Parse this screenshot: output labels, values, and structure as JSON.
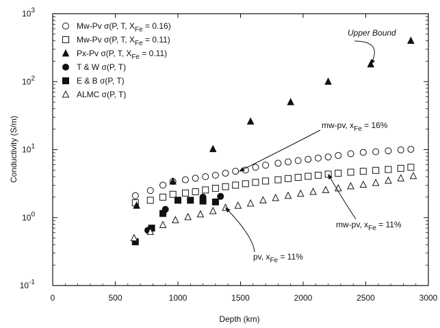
{
  "chart_data": {
    "type": "scatter",
    "title": "",
    "xlabel": "Depth (km)",
    "ylabel": "Conductivity (S/m)",
    "xlim": [
      0,
      3000
    ],
    "ylim": [
      0.1,
      1000
    ],
    "yscale": "log",
    "grid": false,
    "legend_position": "top-left",
    "x_ticks": [
      "0",
      "500",
      "1000",
      "1500",
      "2000",
      "2500",
      "3000"
    ],
    "y_ticks": [
      {
        "base": "10",
        "exp": "-1"
      },
      {
        "base": "10",
        "exp": "0"
      },
      {
        "base": "10",
        "exp": "1"
      },
      {
        "base": "10",
        "exp": "2"
      },
      {
        "base": "10",
        "exp": "3"
      }
    ],
    "series": [
      {
        "name": "Mw-Pv σ(P, T, XFe = 0.16)",
        "label_main": "Mw-Pv σ(P, T, X",
        "label_sub": "Fe",
        "label_tail": " = 0.16)",
        "marker": "open-circle",
        "x": [
          660,
          780,
          880,
          960,
          1060,
          1140,
          1220,
          1300,
          1380,
          1460,
          1540,
          1620,
          1700,
          1800,
          1880,
          1960,
          2040,
          2120,
          2200,
          2280,
          2380,
          2480,
          2580,
          2680,
          2780,
          2860
        ],
        "y": [
          2.1,
          2.5,
          3.0,
          3.4,
          3.6,
          3.8,
          4.0,
          4.2,
          4.5,
          4.8,
          5.0,
          5.5,
          5.9,
          6.3,
          6.6,
          6.9,
          7.2,
          7.5,
          7.8,
          8.2,
          8.7,
          9.1,
          9.3,
          9.6,
          9.9,
          10.1
        ]
      },
      {
        "name": "Mw-Pv σ(P, T, XFe = 0.11)",
        "label_main": "Mw-Pv σ(P, T, X",
        "label_sub": "Fe",
        "label_tail": " = 0.11)",
        "marker": "open-square",
        "x": [
          660,
          780,
          880,
          960,
          1060,
          1140,
          1220,
          1300,
          1380,
          1460,
          1540,
          1620,
          1700,
          1800,
          1880,
          1960,
          2040,
          2120,
          2200,
          2280,
          2380,
          2480,
          2580,
          2680,
          2780,
          2860
        ],
        "y": [
          1.65,
          1.8,
          2.0,
          2.2,
          2.3,
          2.4,
          2.55,
          2.7,
          2.85,
          3.0,
          3.15,
          3.3,
          3.45,
          3.6,
          3.75,
          3.9,
          4.05,
          4.2,
          4.35,
          4.5,
          4.65,
          4.8,
          4.95,
          5.1,
          5.3,
          5.5
        ]
      },
      {
        "name": "Px-Pv σ(P, T, XFe = 0.11)",
        "label_main": "Px-Pv σ(P, T, X",
        "label_sub": "Fe",
        "label_tail": " = 0.11)",
        "marker": "filled-triangle",
        "x": [
          670,
          960,
          1280,
          1580,
          1900,
          2200,
          2540,
          2860
        ],
        "y": [
          1.5,
          3.4,
          10.2,
          26,
          50,
          100,
          180,
          400
        ]
      },
      {
        "name": "T & W σ(P, T)",
        "label_main": "T & W σ(P, T)",
        "label_sub": "",
        "label_tail": "",
        "marker": "filled-circle",
        "x": [
          760,
          900,
          1200,
          1340
        ],
        "y": [
          0.65,
          1.32,
          2.0,
          2.05
        ]
      },
      {
        "name": "E & B σ(P, T)",
        "label_main": "E & B σ(P, T)",
        "label_sub": "",
        "label_tail": "",
        "marker": "filled-square",
        "x": [
          660,
          790,
          880,
          1000,
          1100,
          1200,
          1300
        ],
        "y": [
          0.44,
          0.7,
          1.15,
          1.8,
          1.8,
          1.75,
          1.7
        ]
      },
      {
        "name": "ALMC σ(P, T)",
        "label_main": "ALMC σ(P, T)",
        "label_sub": "",
        "label_tail": "",
        "marker": "open-triangle",
        "x": [
          650,
          780,
          880,
          980,
          1080,
          1180,
          1280,
          1380,
          1480,
          1580,
          1680,
          1780,
          1880,
          1980,
          2080,
          2180,
          2280,
          2380,
          2480,
          2580,
          2680,
          2780,
          2880
        ],
        "y": [
          0.5,
          0.62,
          0.78,
          0.92,
          1.02,
          1.12,
          1.25,
          1.4,
          1.5,
          1.62,
          1.8,
          1.95,
          2.1,
          2.25,
          2.4,
          2.55,
          2.7,
          2.9,
          3.05,
          3.25,
          3.5,
          3.8,
          4.1
        ]
      }
    ],
    "annotations": [
      {
        "id": "upper-bound",
        "text_main": "Upper Bound",
        "text_sub": "",
        "text_tail": "",
        "italic": true,
        "arrow_to": [
          2540,
          180
        ]
      },
      {
        "id": "mw-pv-16",
        "text_main": "mw-pv, x",
        "text_sub": "Fe",
        "text_tail": " = 16%",
        "italic": false,
        "arrow_to": [
          1490,
          4.8
        ]
      },
      {
        "id": "mw-pv-11",
        "text_main": "mw-pv, x",
        "text_sub": "Fe",
        "text_tail": " = 11%",
        "italic": false,
        "arrow_to": [
          2200,
          4.35
        ]
      },
      {
        "id": "pv-11",
        "text_main": "pv, x",
        "text_sub": "Fe",
        "text_tail": " = 11%",
        "italic": false,
        "arrow_to": [
          1380,
          1.4
        ]
      }
    ]
  }
}
